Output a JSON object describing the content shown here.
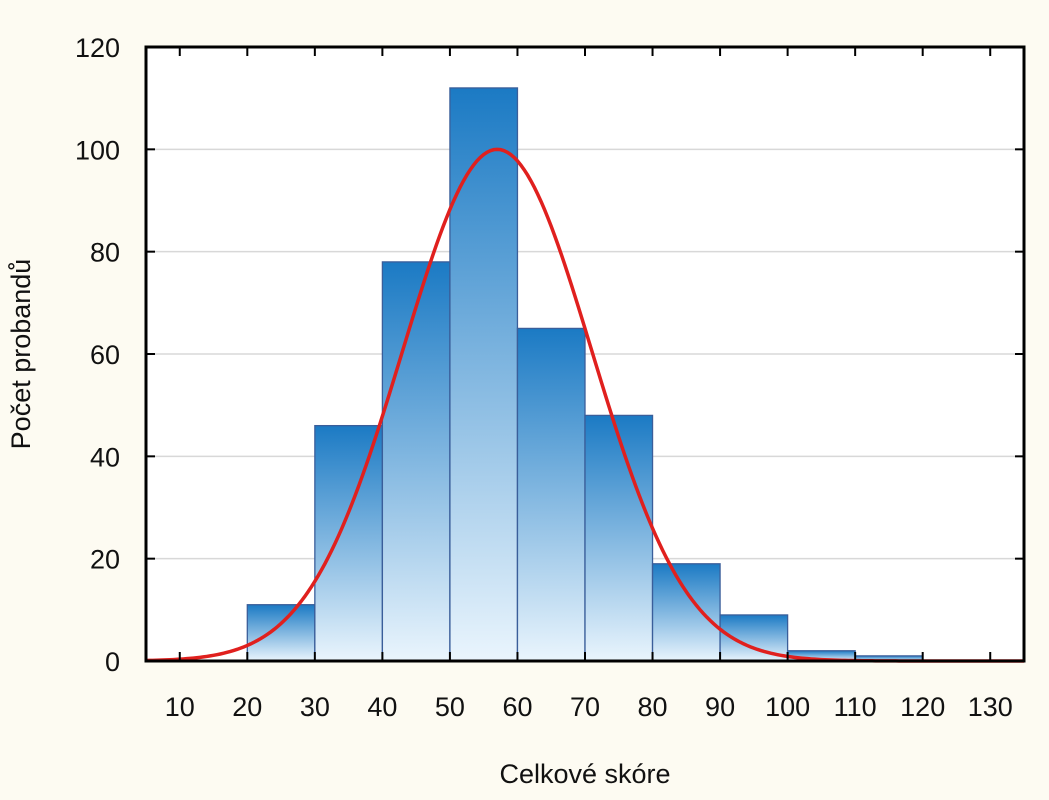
{
  "chart_data": {
    "type": "bar",
    "title": "",
    "xlabel": "Celkové skóre",
    "ylabel": "Počet probandů",
    "xlim": [
      5,
      135
    ],
    "ylim": [
      0,
      120
    ],
    "x_ticks": [
      10,
      20,
      30,
      40,
      50,
      60,
      70,
      80,
      90,
      100,
      110,
      120,
      130
    ],
    "y_ticks": [
      0,
      20,
      40,
      60,
      80,
      100,
      120
    ],
    "grid": "horizontal",
    "bins": [
      {
        "from": 10,
        "to": 20,
        "value": 0
      },
      {
        "from": 20,
        "to": 30,
        "value": 11
      },
      {
        "from": 30,
        "to": 40,
        "value": 46
      },
      {
        "from": 40,
        "to": 50,
        "value": 78
      },
      {
        "from": 50,
        "to": 60,
        "value": 112
      },
      {
        "from": 60,
        "to": 70,
        "value": 65
      },
      {
        "from": 70,
        "to": 80,
        "value": 48
      },
      {
        "from": 80,
        "to": 90,
        "value": 19
      },
      {
        "from": 90,
        "to": 100,
        "value": 9
      },
      {
        "from": 100,
        "to": 110,
        "value": 2
      },
      {
        "from": 110,
        "to": 120,
        "value": 1
      },
      {
        "from": 120,
        "to": 130,
        "value": 0
      }
    ],
    "normal_curve": {
      "mean": 57,
      "sd": 14,
      "peak": 100
    },
    "colors": {
      "bar_top": "#1b7ac4",
      "bar_bottom": "#eaf5fd",
      "bar_stroke": "#3a5e9a",
      "curve": "#e0201e",
      "grid": "#d8d8d8",
      "axis": "#000000",
      "background": "#fdfbf2",
      "plot_background": "#ffffff"
    }
  }
}
